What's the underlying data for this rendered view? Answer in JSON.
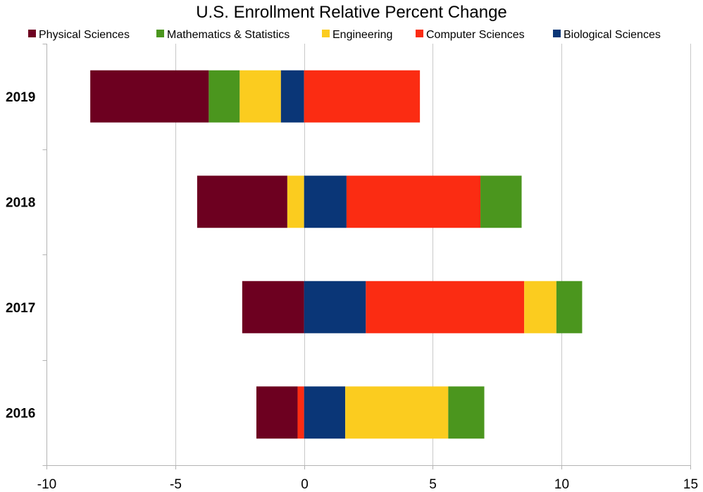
{
  "chart_data": {
    "type": "bar",
    "orientation": "horizontal",
    "stacked": "diverging",
    "title": "U.S. Enrollment Relative Percent Change",
    "categories": [
      "2019",
      "2018",
      "2017",
      "2016"
    ],
    "xlim": [
      -10,
      15
    ],
    "xticks": [
      -10,
      -5,
      0,
      5,
      10,
      15
    ],
    "xtick_labels": [
      "-10",
      "-5",
      "0",
      "5",
      "10",
      "15"
    ],
    "grid": true,
    "legend_position": "top",
    "series": [
      {
        "name": "Physical Sciences",
        "color": "#6d0020",
        "values": [
          -4.6,
          -3.5,
          -2.4,
          -1.6
        ]
      },
      {
        "name": "Mathematics & Statistics",
        "color": "#4b961e",
        "values": [
          -1.2,
          1.6,
          1.0,
          1.4
        ]
      },
      {
        "name": "Engineering",
        "color": "#fbcc1f",
        "values": [
          -1.6,
          -0.65,
          1.25,
          4.0
        ]
      },
      {
        "name": "Computer Sciences",
        "color": "#fb2c12",
        "values": [
          4.5,
          5.2,
          6.15,
          -0.25
        ]
      },
      {
        "name": "Biological Sciences",
        "color": "#0a3677",
        "values": [
          -0.9,
          1.65,
          2.4,
          1.6
        ]
      }
    ]
  }
}
